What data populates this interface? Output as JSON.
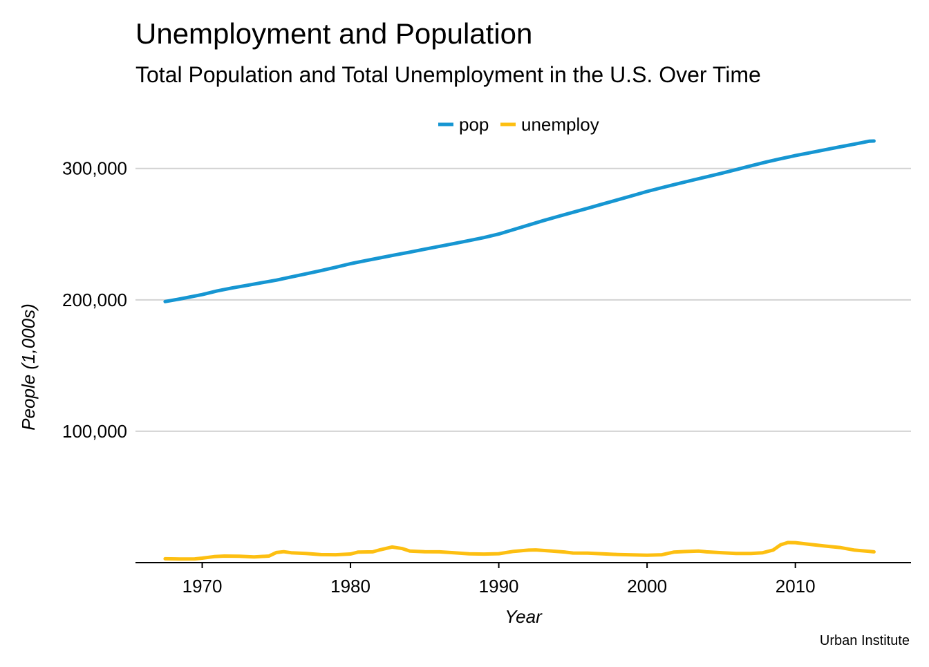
{
  "chart_data": {
    "type": "line",
    "title": "Unemployment and Population",
    "subtitle": "Total Population and Total Unemployment in the U.S. Over Time",
    "xlabel": "Year",
    "ylabel": "People (1,000s)",
    "caption": "Urban Institute",
    "legend_position": "top",
    "grid": "horizontal",
    "xlim": [
      1965.5,
      2017.8
    ],
    "ylim": [
      0,
      323000
    ],
    "x_ticks": [
      {
        "value": 1970,
        "label": "1970"
      },
      {
        "value": 1980,
        "label": "1980"
      },
      {
        "value": 1990,
        "label": "1990"
      },
      {
        "value": 2000,
        "label": "2000"
      },
      {
        "value": 2010,
        "label": "2010"
      }
    ],
    "y_ticks": [
      {
        "value": 100000,
        "label": "100,000"
      },
      {
        "value": 200000,
        "label": "200,000"
      },
      {
        "value": 300000,
        "label": "300,000"
      }
    ],
    "series": [
      {
        "name": "pop",
        "color": "#1696d2",
        "points": [
          [
            1967.5,
            198712
          ],
          [
            1968.5,
            200700
          ],
          [
            1970.0,
            204000
          ],
          [
            1971.0,
            206800
          ],
          [
            1972.0,
            209000
          ],
          [
            1973.0,
            211000
          ],
          [
            1974.0,
            213000
          ],
          [
            1975.0,
            215000
          ],
          [
            1976.0,
            217400
          ],
          [
            1977.0,
            219800
          ],
          [
            1978.0,
            222200
          ],
          [
            1979.0,
            224800
          ],
          [
            1980.0,
            227500
          ],
          [
            1981.0,
            229800
          ],
          [
            1982.0,
            232000
          ],
          [
            1983.0,
            234200
          ],
          [
            1984.0,
            236300
          ],
          [
            1985.0,
            238500
          ],
          [
            1986.0,
            240700
          ],
          [
            1987.0,
            242900
          ],
          [
            1988.0,
            245100
          ],
          [
            1989.0,
            247400
          ],
          [
            1990.0,
            250100
          ],
          [
            1991.0,
            253500
          ],
          [
            1992.0,
            256900
          ],
          [
            1993.0,
            260300
          ],
          [
            1994.0,
            263500
          ],
          [
            1995.0,
            266600
          ],
          [
            1996.0,
            269700
          ],
          [
            1997.0,
            272900
          ],
          [
            1998.0,
            276100
          ],
          [
            1999.0,
            279300
          ],
          [
            2000.0,
            282500
          ],
          [
            2001.0,
            285400
          ],
          [
            2002.0,
            288200
          ],
          [
            2003.0,
            290900
          ],
          [
            2004.0,
            293600
          ],
          [
            2005.0,
            296300
          ],
          [
            2006.0,
            299100
          ],
          [
            2007.0,
            302000
          ],
          [
            2008.0,
            304800
          ],
          [
            2009.0,
            307400
          ],
          [
            2010.0,
            309800
          ],
          [
            2011.0,
            312000
          ],
          [
            2012.0,
            314200
          ],
          [
            2013.0,
            316400
          ],
          [
            2014.0,
            318600
          ],
          [
            2015.0,
            320800
          ],
          [
            2015.3,
            320900
          ]
        ]
      },
      {
        "name": "unemploy",
        "color": "#fdbf11",
        "points": [
          [
            1967.5,
            2944
          ],
          [
            1968.5,
            2800
          ],
          [
            1969.5,
            2850
          ],
          [
            1970.0,
            3400
          ],
          [
            1970.8,
            4600
          ],
          [
            1971.5,
            5000
          ],
          [
            1972.5,
            4900
          ],
          [
            1973.5,
            4300
          ],
          [
            1974.5,
            5000
          ],
          [
            1975.0,
            7700
          ],
          [
            1975.5,
            8300
          ],
          [
            1976.0,
            7500
          ],
          [
            1977.0,
            7000
          ],
          [
            1978.0,
            6100
          ],
          [
            1979.0,
            6000
          ],
          [
            1980.0,
            6600
          ],
          [
            1980.5,
            8000
          ],
          [
            1981.5,
            8200
          ],
          [
            1982.0,
            9800
          ],
          [
            1982.8,
            11900
          ],
          [
            1983.5,
            10700
          ],
          [
            1984.0,
            8800
          ],
          [
            1985.0,
            8300
          ],
          [
            1986.0,
            8200
          ],
          [
            1987.0,
            7500
          ],
          [
            1988.0,
            6700
          ],
          [
            1989.0,
            6500
          ],
          [
            1990.0,
            6800
          ],
          [
            1991.0,
            8600
          ],
          [
            1992.0,
            9500
          ],
          [
            1992.5,
            9700
          ],
          [
            1993.5,
            8900
          ],
          [
            1994.5,
            8000
          ],
          [
            1995.0,
            7300
          ],
          [
            1996.0,
            7200
          ],
          [
            1997.0,
            6700
          ],
          [
            1998.0,
            6200
          ],
          [
            1999.0,
            5900
          ],
          [
            2000.0,
            5700
          ],
          [
            2001.0,
            6000
          ],
          [
            2001.8,
            8000
          ],
          [
            2002.5,
            8400
          ],
          [
            2003.5,
            8800
          ],
          [
            2004.0,
            8200
          ],
          [
            2005.0,
            7600
          ],
          [
            2006.0,
            7000
          ],
          [
            2007.0,
            7000
          ],
          [
            2007.8,
            7500
          ],
          [
            2008.5,
            9600
          ],
          [
            2009.0,
            13500
          ],
          [
            2009.5,
            15300
          ],
          [
            2010.0,
            15200
          ],
          [
            2011.0,
            13900
          ],
          [
            2012.0,
            12600
          ],
          [
            2013.0,
            11500
          ],
          [
            2014.0,
            9500
          ],
          [
            2015.0,
            8500
          ],
          [
            2015.3,
            8200
          ]
        ]
      }
    ]
  }
}
